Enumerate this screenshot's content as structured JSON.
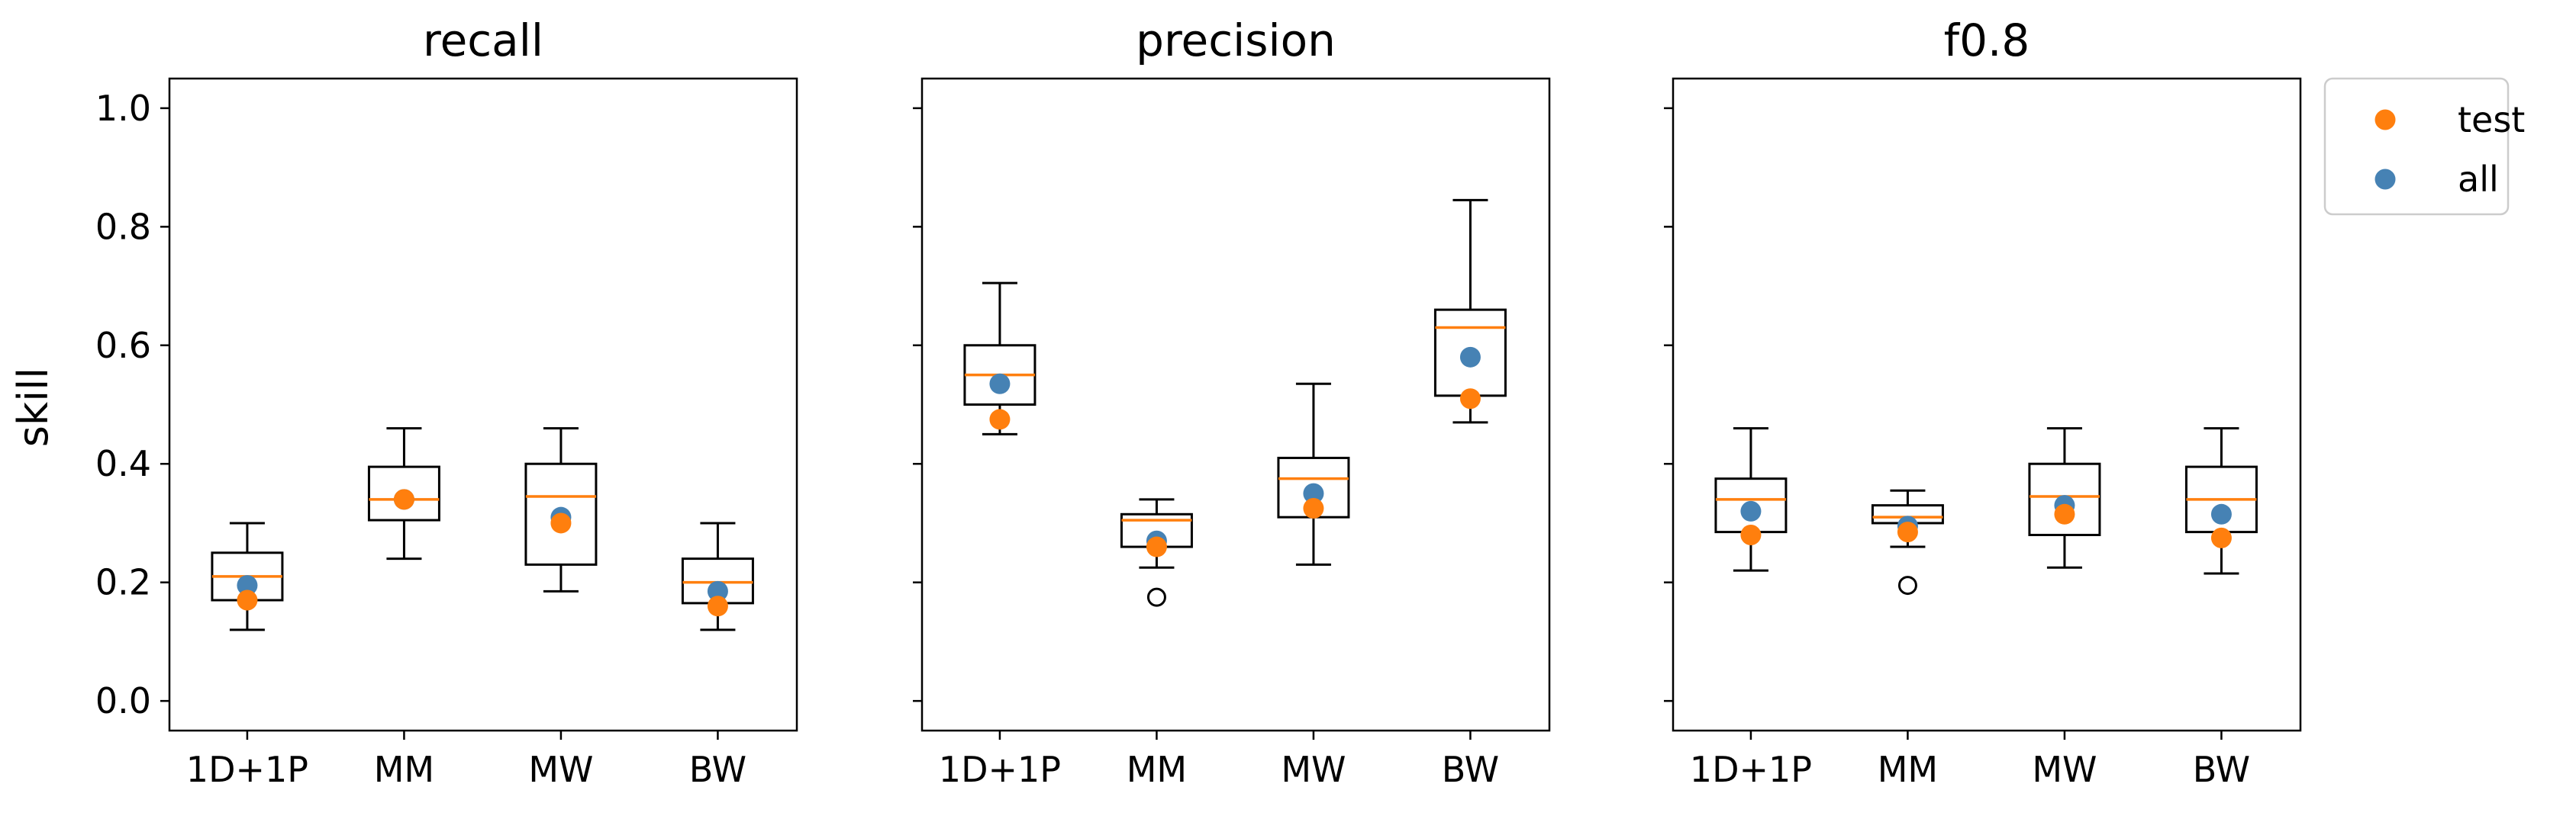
{
  "chart_data": {
    "type": "box",
    "ylabel": "skill",
    "ylim": [
      -0.05,
      1.05
    ],
    "yticks": [
      0.0,
      0.2,
      0.4,
      0.6,
      0.8,
      1.0
    ],
    "ytick_labels": [
      "0.0",
      "0.2",
      "0.4",
      "0.6",
      "0.8",
      "1.0"
    ],
    "categories": [
      "1D+1P",
      "MM",
      "MW",
      "BW"
    ],
    "legend": {
      "placement": "outside-top-right",
      "entries": [
        {
          "label": "test",
          "color": "#ff7f0e"
        },
        {
          "label": "all",
          "color": "#4682b4"
        }
      ]
    },
    "colors": {
      "median": "#ff7f0e",
      "box": "#000000",
      "test": "#ff7f0e",
      "all": "#4682b4"
    },
    "panels": [
      {
        "title": "recall",
        "boxes": [
          {
            "category": "1D+1P",
            "whisker_low": 0.12,
            "q1": 0.17,
            "median": 0.21,
            "q3": 0.25,
            "whisker_high": 0.3,
            "outliers": [],
            "test": 0.17,
            "all": 0.195
          },
          {
            "category": "MM",
            "whisker_low": 0.24,
            "q1": 0.305,
            "median": 0.34,
            "q3": 0.395,
            "whisker_high": 0.46,
            "outliers": [],
            "test": 0.34,
            "all": 0.34
          },
          {
            "category": "MW",
            "whisker_low": 0.185,
            "q1": 0.23,
            "median": 0.345,
            "q3": 0.4,
            "whisker_high": 0.46,
            "outliers": [],
            "test": 0.3,
            "all": 0.31
          },
          {
            "category": "BW",
            "whisker_low": 0.12,
            "q1": 0.165,
            "median": 0.2,
            "q3": 0.24,
            "whisker_high": 0.3,
            "outliers": [],
            "test": 0.16,
            "all": 0.185
          }
        ]
      },
      {
        "title": "precision",
        "boxes": [
          {
            "category": "1D+1P",
            "whisker_low": 0.45,
            "q1": 0.5,
            "median": 0.55,
            "q3": 0.6,
            "whisker_high": 0.705,
            "outliers": [],
            "test": 0.475,
            "all": 0.535
          },
          {
            "category": "MM",
            "whisker_low": 0.225,
            "q1": 0.26,
            "median": 0.305,
            "q3": 0.315,
            "whisker_high": 0.34,
            "outliers": [
              0.175
            ],
            "test": 0.26,
            "all": 0.27
          },
          {
            "category": "MW",
            "whisker_low": 0.23,
            "q1": 0.31,
            "median": 0.375,
            "q3": 0.41,
            "whisker_high": 0.535,
            "outliers": [],
            "test": 0.325,
            "all": 0.35
          },
          {
            "category": "BW",
            "whisker_low": 0.47,
            "q1": 0.515,
            "median": 0.63,
            "q3": 0.66,
            "whisker_high": 0.845,
            "outliers": [],
            "test": 0.51,
            "all": 0.58
          }
        ]
      },
      {
        "title": "f0.8",
        "boxes": [
          {
            "category": "1D+1P",
            "whisker_low": 0.22,
            "q1": 0.285,
            "median": 0.34,
            "q3": 0.375,
            "whisker_high": 0.46,
            "outliers": [],
            "test": 0.28,
            "all": 0.32
          },
          {
            "category": "MM",
            "whisker_low": 0.26,
            "q1": 0.3,
            "median": 0.31,
            "q3": 0.33,
            "whisker_high": 0.355,
            "outliers": [
              0.195
            ],
            "test": 0.285,
            "all": 0.295
          },
          {
            "category": "MW",
            "whisker_low": 0.225,
            "q1": 0.28,
            "median": 0.345,
            "q3": 0.4,
            "whisker_high": 0.46,
            "outliers": [],
            "test": 0.315,
            "all": 0.33
          },
          {
            "category": "BW",
            "whisker_low": 0.215,
            "q1": 0.285,
            "median": 0.34,
            "q3": 0.395,
            "whisker_high": 0.46,
            "outliers": [],
            "test": 0.275,
            "all": 0.315
          }
        ]
      }
    ]
  }
}
